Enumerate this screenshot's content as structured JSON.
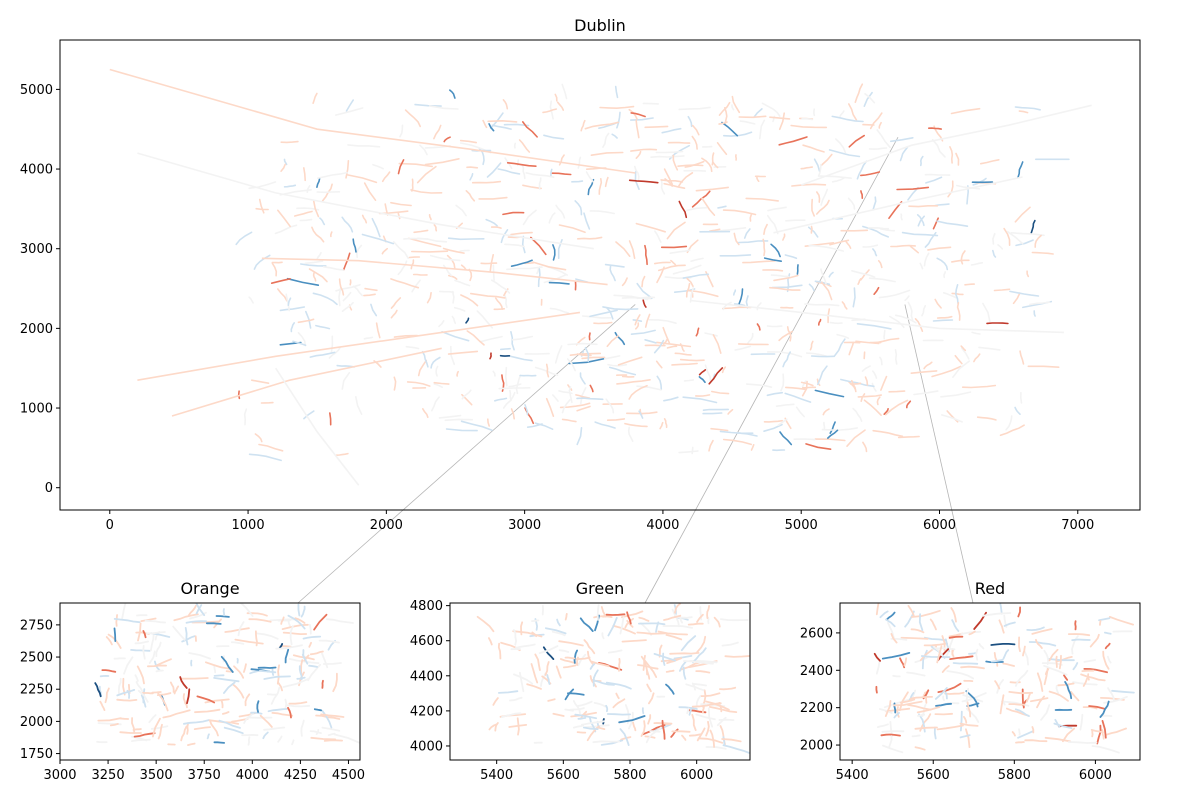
{
  "chart_data": [
    {
      "type": "line",
      "description": "road network map with segments coloured on a diverging red/blue scale",
      "title": "Dublin",
      "xlim": [
        -360,
        7450
      ],
      "ylim": [
        -280,
        5620
      ],
      "xticks": [
        0,
        1000,
        2000,
        3000,
        4000,
        5000,
        6000,
        7000
      ],
      "yticks": [
        0,
        1000,
        2000,
        3000,
        4000,
        5000
      ],
      "colorscale": {
        "strong_red": "#c0392b",
        "red": "#e8735a",
        "light_red": "#fdd9c8",
        "neutral": "#f3f3f3",
        "light_blue": "#cfe2f1",
        "blue": "#4a8fc0",
        "strong_blue": "#1b4f80"
      }
    },
    {
      "type": "line",
      "title": "Orange",
      "xlim": [
        3000,
        4560
      ],
      "ylim": [
        1700,
        2920
      ],
      "xticks": [
        3000,
        3250,
        3500,
        3750,
        4000,
        4250,
        4500
      ],
      "yticks": [
        1750,
        2000,
        2250,
        2500,
        2750
      ]
    },
    {
      "type": "line",
      "title": "Green",
      "xlim": [
        5260,
        6160
      ],
      "ylim": [
        3920,
        4815
      ],
      "xticks": [
        5400,
        5600,
        5800,
        6000
      ],
      "yticks": [
        4000,
        4200,
        4400,
        4600,
        4800
      ]
    },
    {
      "type": "line",
      "title": "Red",
      "xlim": [
        5370,
        6110
      ],
      "ylim": [
        1920,
        2760
      ],
      "xticks": [
        5400,
        5600,
        5800,
        6000
      ],
      "yticks": [
        2000,
        2200,
        2400,
        2600
      ]
    }
  ]
}
